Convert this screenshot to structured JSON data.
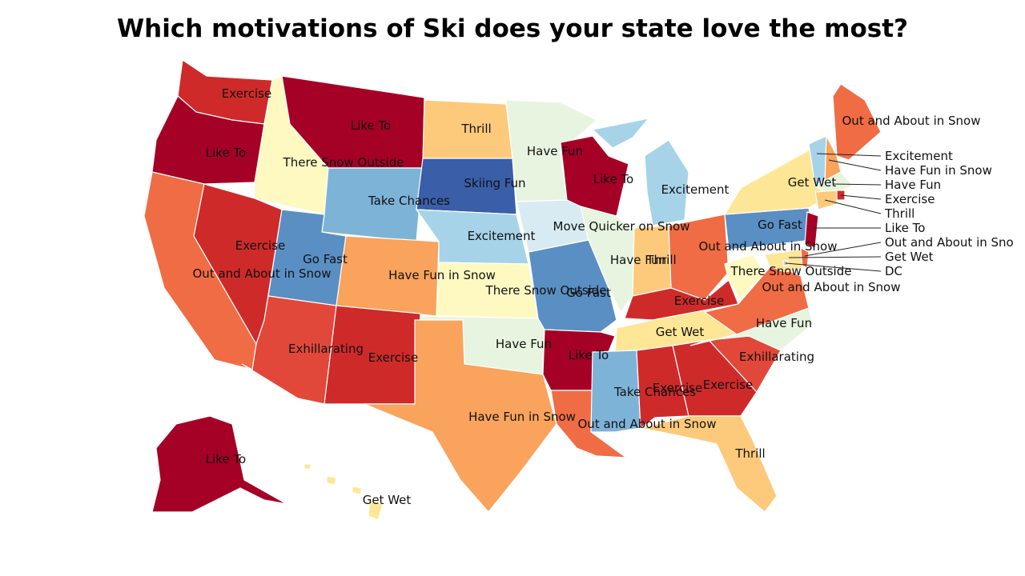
{
  "title": "Which motivations of Ski does your state love the most?",
  "palette": {
    "Like To": "#a50026",
    "Exercise": "#cf2a2a",
    "Exhillarating": "#e2483a",
    "Out and About in Snow": "#f06c45",
    "Have Fun in Snow": "#f9a35c",
    "Thrill": "#fdc97a",
    "Get Wet": "#fee697",
    "There Snow Outside": "#fdf9c1",
    "Have Fun": "#e7f4df",
    "Move Quicker on Snow": "#d8ebf2",
    "Excitement": "#a6d3e8",
    "Take Chances": "#7eb3d8",
    "Go Fast": "#5a8fc4",
    "Skiing Fun": "#3a5ea8"
  },
  "states": [
    {
      "code": "WA",
      "value": "Exercise"
    },
    {
      "code": "OR",
      "value": "Like To"
    },
    {
      "code": "CA",
      "value": "Out and About in Snow"
    },
    {
      "code": "ID",
      "value": "There Snow Outside"
    },
    {
      "code": "NV",
      "value": "Exercise"
    },
    {
      "code": "MT",
      "value": "Like To"
    },
    {
      "code": "WY",
      "value": "Take Chances"
    },
    {
      "code": "UT",
      "value": "Go Fast"
    },
    {
      "code": "AZ",
      "value": "Exhillarating"
    },
    {
      "code": "CO",
      "value": "Have Fun in Snow"
    },
    {
      "code": "NM",
      "value": "Exercise"
    },
    {
      "code": "ND",
      "value": "Thrill"
    },
    {
      "code": "SD",
      "value": "Skiing Fun"
    },
    {
      "code": "NE",
      "value": "Excitement"
    },
    {
      "code": "KS",
      "value": "There Snow Outside"
    },
    {
      "code": "OK",
      "value": "Have Fun"
    },
    {
      "code": "TX",
      "value": "Have Fun in Snow"
    },
    {
      "code": "MN",
      "value": "Have Fun"
    },
    {
      "code": "IA",
      "value": "Move Quicker on Snow"
    },
    {
      "code": "MO",
      "value": "Go Fast"
    },
    {
      "code": "AR",
      "value": "Like To"
    },
    {
      "code": "LA",
      "value": "Out and About in Snow"
    },
    {
      "code": "WI",
      "value": "Like To"
    },
    {
      "code": "MI",
      "value": "Excitement"
    },
    {
      "code": "IL",
      "value": "Have Fun"
    },
    {
      "code": "IN",
      "value": "Thrill"
    },
    {
      "code": "OH",
      "value": "Out and About in Snow"
    },
    {
      "code": "KY",
      "value": "Exercise"
    },
    {
      "code": "TN",
      "value": "Get Wet"
    },
    {
      "code": "MS",
      "value": "Take Chances"
    },
    {
      "code": "AL",
      "value": "Exercise"
    },
    {
      "code": "GA",
      "value": "Exercise"
    },
    {
      "code": "FL",
      "value": "Thrill"
    },
    {
      "code": "SC",
      "value": "Exhillarating"
    },
    {
      "code": "NC",
      "value": "Have Fun"
    },
    {
      "code": "VA",
      "value": "Out and About in Snow"
    },
    {
      "code": "WV",
      "value": "There Snow Outside"
    },
    {
      "code": "PA",
      "value": "Go Fast"
    },
    {
      "code": "NY",
      "value": "Get Wet"
    },
    {
      "code": "ME",
      "value": "Out and About in Snow"
    },
    {
      "code": "VT",
      "value": "Excitement"
    },
    {
      "code": "NH",
      "value": "Have Fun in Snow"
    },
    {
      "code": "MA",
      "value": "Have Fun"
    },
    {
      "code": "RI",
      "value": "Exercise"
    },
    {
      "code": "CT",
      "value": "Thrill"
    },
    {
      "code": "NJ",
      "value": "Like To"
    },
    {
      "code": "DE",
      "value": "Out and About in Snow"
    },
    {
      "code": "MD",
      "value": "Get Wet"
    },
    {
      "code": "DC",
      "value": "DC"
    },
    {
      "code": "AK",
      "value": "Like To"
    },
    {
      "code": "HI",
      "value": "Get Wet"
    }
  ],
  "callouts": [
    {
      "code": "VT",
      "text": "Excitement"
    },
    {
      "code": "NH",
      "text": "Have Fun in Snow"
    },
    {
      "code": "MA",
      "text": "Have Fun"
    },
    {
      "code": "RI",
      "text": "Exercise"
    },
    {
      "code": "CT",
      "text": "Thrill"
    },
    {
      "code": "NJ",
      "text": "Like To"
    },
    {
      "code": "DE",
      "text": "Out and About in Sno"
    },
    {
      "code": "MD",
      "text": "Get Wet"
    },
    {
      "code": "DC",
      "text": "DC"
    }
  ]
}
